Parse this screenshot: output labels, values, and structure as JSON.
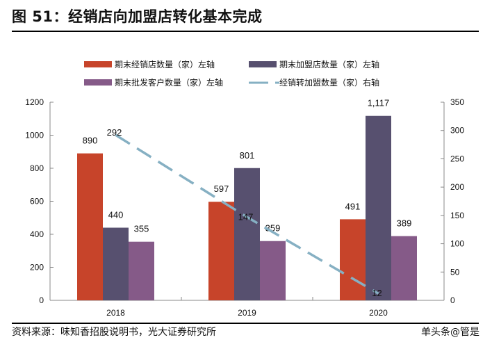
{
  "header": {
    "title": "图 51：经销店向加盟店转化基本完成"
  },
  "footer": {
    "source": "资料来源：味知香招股说明书，光大证券研究所",
    "unit": "单头条@管是"
  },
  "colors": {
    "dealer": "#C7442A",
    "franchise": "#57506F",
    "wholesale": "#855A88",
    "conversion": "#86B0C3"
  },
  "chart_data": {
    "type": "bar",
    "categories": [
      "2018",
      "2019",
      "2020"
    ],
    "series": [
      {
        "name": "期末经销店数量（家）左轴",
        "values": [
          890,
          597,
          491
        ],
        "axis": "left",
        "type": "bar"
      },
      {
        "name": "期末加盟店数量（家）左轴",
        "values": [
          440,
          801,
          1117
        ],
        "axis": "left",
        "type": "bar"
      },
      {
        "name": "期末批发客户数量（家）左轴",
        "values": [
          355,
          359,
          389
        ],
        "axis": "left",
        "type": "bar"
      },
      {
        "name": "经销转加盟数量（家）右轴",
        "values": [
          292,
          147,
          12
        ],
        "axis": "right",
        "type": "line-dashed"
      }
    ],
    "data_labels": [
      [
        "890",
        "597",
        "491"
      ],
      [
        "440",
        "801",
        "1,117"
      ],
      [
        "355",
        "359",
        "389"
      ],
      [
        "292",
        "147",
        "12"
      ]
    ],
    "ylim_left": [
      0,
      1200
    ],
    "yticks_left": [
      "0",
      "200",
      "400",
      "600",
      "800",
      "1000",
      "1200"
    ],
    "ylim_right": [
      0,
      350
    ],
    "yticks_right": [
      "0",
      "50",
      "100",
      "150",
      "200",
      "250",
      "300",
      "350"
    ],
    "grid": false,
    "legend": "top"
  }
}
